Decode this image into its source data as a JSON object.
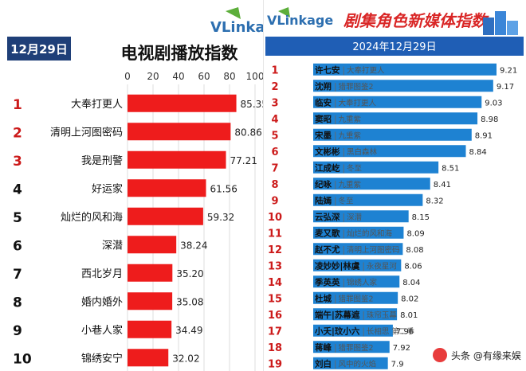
{
  "left_panel": {
    "brand": "VLinkage",
    "date_badge": "12月29日",
    "title": "电视剧播放指数",
    "chart_data": {
      "type": "bar",
      "orientation": "horizontal",
      "title": "电视剧播放指数",
      "xlim": [
        0,
        100
      ],
      "xticks": [
        0,
        20,
        40,
        60,
        80,
        100
      ],
      "grid": true,
      "bar_color": "#ee1c1c",
      "rank_color_top3": "#cc1a1a",
      "categories": [
        "大奉打更人",
        "清明上河图密码",
        "我是刑警",
        "好运家",
        "灿烂的风和海",
        "深潜",
        "西北岁月",
        "婚内婚外",
        "小巷人家",
        "锦绣安宁"
      ],
      "ranks": [
        "1",
        "2",
        "3",
        "4",
        "5",
        "6",
        "7",
        "8",
        "9",
        "10"
      ],
      "values": [
        85.35,
        80.86,
        77.21,
        61.56,
        59.32,
        38.24,
        35.2,
        35.08,
        34.49,
        32.02
      ],
      "value_labels": [
        "85.35",
        "80.86",
        "77.21",
        "61.56",
        "59.32",
        "38.24",
        "35.20",
        "35.08",
        "34.49",
        "32.02"
      ]
    }
  },
  "right_panel": {
    "brand": "VLinkage",
    "title": "剧集角色新媒体指数",
    "date_banner": "2024年12月29日",
    "chart_data": {
      "type": "bar",
      "orientation": "horizontal",
      "title": "剧集角色新媒体指数",
      "bar_color": "#1e82d2",
      "ranks": [
        "1",
        "2",
        "3",
        "4",
        "5",
        "6",
        "7",
        "8",
        "9",
        "10",
        "11",
        "12",
        "13",
        "14",
        "15",
        "16",
        "17",
        "18",
        "19"
      ],
      "roles": [
        "许七安",
        "沈朔",
        "临安",
        "窦昭",
        "宋墨",
        "文彬彬",
        "江成屹",
        "纪咏",
        "陆嫣",
        "云弘深",
        "麦又歌",
        "赵不尤",
        "凌妙妙|林虞",
        "季英英",
        "杜城",
        "端午|苏幕遮",
        "小夭|玟小六",
        "蒋峰",
        "刘白"
      ],
      "dramas": [
        "大奉打更人",
        "猎罪图鉴2",
        "大奉打更人",
        "九重紫",
        "九重紫",
        "黑白森林",
        "冬至",
        "九重紫",
        "冬至",
        "深潜",
        "灿烂的风和海",
        "清明上河图密码",
        "永夜星河",
        "锦绣人家",
        "猎罪图鉴2",
        "珠帘玉幕",
        "长相思 第二季",
        "猎罪图鉴2",
        "风中的火焰"
      ],
      "values": [
        9.21,
        9.17,
        9.03,
        8.98,
        8.91,
        8.84,
        8.51,
        8.41,
        8.32,
        8.15,
        8.09,
        8.08,
        8.06,
        8.04,
        8.02,
        8.01,
        7.96,
        7.92,
        7.9
      ],
      "value_labels": [
        "9.21",
        "9.17",
        "9.03",
        "8.98",
        "8.91",
        "8.84",
        "8.51",
        "8.41",
        "8.32",
        "8.15",
        "8.09",
        "8.08",
        "8.06",
        "8.04",
        "8.02",
        "8.01",
        "7.96",
        "7.92",
        "7.9"
      ]
    },
    "watermark": "头条 @有缘来娱",
    "watermark_icon": "toutiao-logo-icon"
  }
}
